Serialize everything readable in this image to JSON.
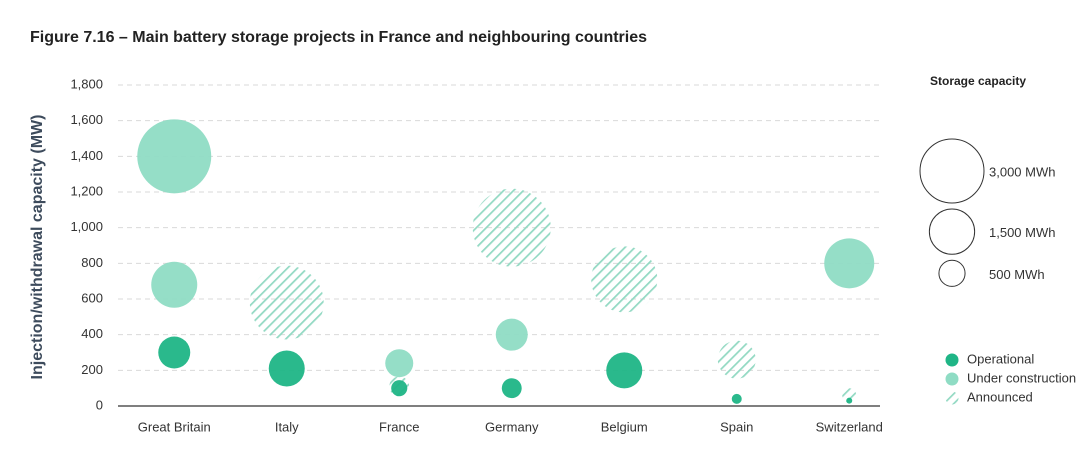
{
  "chart_data": {
    "type": "bubble",
    "title": "Figure 7.16 – Main battery storage projects in France and neighbouring countries",
    "y_label": "Injection/withdrawal capacity (MW)",
    "categories": [
      "Great Britain",
      "Italy",
      "France",
      "Germany",
      "Belgium",
      "Spain",
      "Switzerland"
    ],
    "ylim": [
      0,
      1800
    ],
    "yticks": [
      0,
      200,
      400,
      600,
      800,
      {
        "value": 1000,
        "label": "1,000"
      },
      {
        "value": 1200,
        "label": "1,200"
      },
      {
        "value": 1400,
        "label": "1,400"
      },
      {
        "value": 1600,
        "label": "1,600"
      },
      {
        "value": 1800,
        "label": "1,800"
      }
    ],
    "grid": true,
    "series": [
      {
        "name": "Announced",
        "color": "#93d9c3",
        "hatch": true,
        "x": [
          "Italy",
          "France",
          "Germany",
          "Belgium",
          "Spain",
          "Switzerland"
        ],
        "values": [
          580,
          110,
          1000,
          710,
          260,
          60
        ],
        "sizes": [
          4000,
          290,
          4460,
          3200,
          1060,
          144
        ]
      },
      {
        "name": "Under construction",
        "color": "#8fdcc4",
        "hatch": false,
        "x": [
          "Great Britain",
          "Great Britain",
          "France",
          "Germany",
          "Switzerland"
        ],
        "values": [
          1400,
          680,
          240,
          400,
          800
        ],
        "sizes": [
          4010,
          1550,
          575,
          750,
          1830
        ]
      },
      {
        "name": "Operational",
        "color": "#1fb586",
        "hatch": false,
        "x": [
          "Great Britain",
          "Italy",
          "France",
          "Germany",
          "Belgium",
          "Spain",
          "Switzerland"
        ],
        "values": [
          300,
          210,
          100,
          100,
          200,
          40,
          30
        ],
        "sizes": [
          750,
          950,
          190,
          290,
          950,
          73,
          26
        ]
      }
    ],
    "legend_order": [
      2,
      1,
      0
    ],
    "size_legend_title": "Storage capacity",
    "size_legend": [
      {
        "value": 3000,
        "label": "3,000 MWh"
      },
      {
        "value": 1500,
        "label": "1,500 MWh"
      },
      {
        "value": 500,
        "label": "500 MWh"
      }
    ]
  }
}
